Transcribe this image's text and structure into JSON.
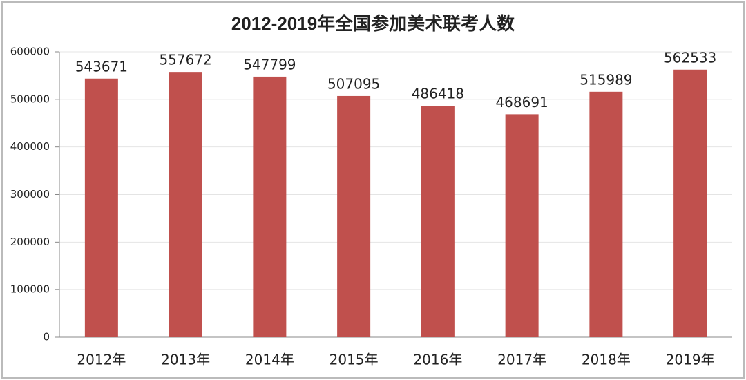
{
  "chart_data": {
    "type": "bar",
    "title": "2012-2019年全国参加美术联考人数",
    "categories": [
      "2012年",
      "2013年",
      "2014年",
      "2015年",
      "2016年",
      "2017年",
      "2018年",
      "2019年"
    ],
    "values": [
      543671,
      557672,
      547799,
      507095,
      486418,
      468691,
      515989,
      562533
    ],
    "color": "#c0504d",
    "ylim": [
      0,
      600000
    ],
    "yticks": [
      0,
      100000,
      200000,
      300000,
      400000,
      500000,
      600000
    ],
    "grid": true
  }
}
